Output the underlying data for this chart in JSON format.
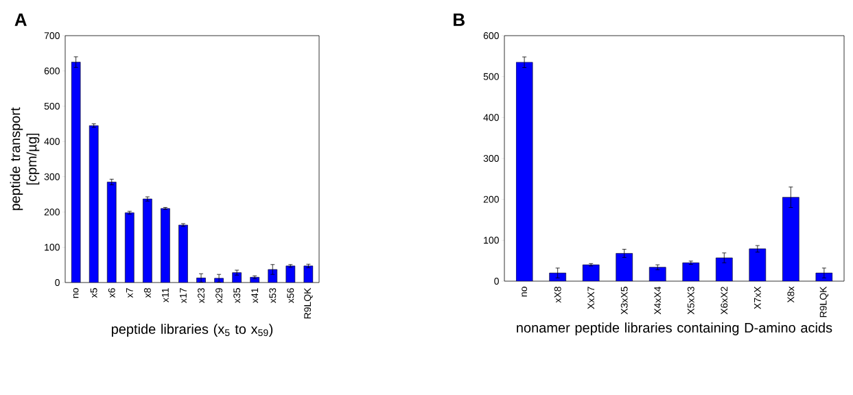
{
  "chart_data": [
    {
      "type": "bar",
      "title": "A",
      "ylabel": "peptide transport [cpm/µg]",
      "xlabel": "peptide libraries (x$_{5}$ to x$_{59}$)",
      "categories": [
        "no",
        "x5",
        "x6",
        "x7",
        "x8",
        "x11",
        "x17",
        "x23",
        "x29",
        "x35",
        "x41",
        "x53",
        "x56",
        "R9LQK"
      ],
      "values": [
        625,
        445,
        285,
        198,
        237,
        210,
        163,
        13,
        12,
        28,
        15,
        37,
        47,
        47
      ],
      "errors": [
        15,
        5,
        8,
        4,
        6,
        3,
        4,
        12,
        11,
        7,
        4,
        14,
        4,
        5
      ],
      "color": "#0000ff",
      "ylim": [
        0,
        700
      ],
      "yticks": [
        0,
        100,
        200,
        300,
        400,
        500,
        600,
        700
      ]
    },
    {
      "type": "bar",
      "title": "B",
      "xlabel": "nonamer peptide libraries containing D-amino acids",
      "categories": [
        "no",
        "xX8",
        "XxX7",
        "X3xX5",
        "X4xX4",
        "X5xX3",
        "X6xX2",
        "X7xX",
        "X8x",
        "R9LQK"
      ],
      "values": [
        535,
        20,
        40,
        68,
        34,
        45,
        57,
        79,
        205,
        20
      ],
      "errors": [
        13,
        12,
        3,
        10,
        6,
        4,
        12,
        8,
        25,
        12
      ],
      "color": "#0000ff",
      "ylim": [
        0,
        600
      ],
      "yticks": [
        0,
        100,
        200,
        300,
        400,
        500,
        600
      ]
    }
  ]
}
